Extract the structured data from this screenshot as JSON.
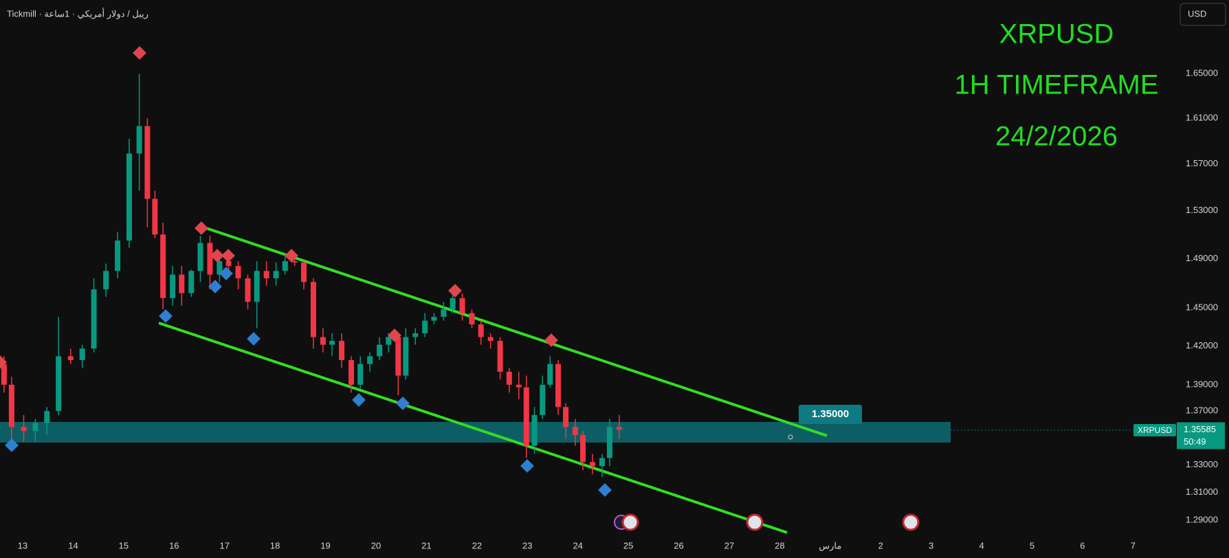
{
  "chart_data": {
    "type": "candlestick",
    "header": "Tickmill · ريبل / دولار أمريكي · 1ساعة",
    "title": "XRPUSD",
    "subtitle": "1H TIMEFRAME",
    "date_label": "24/2/2026",
    "currency_button": "USD",
    "symbol_tag": "XRPUSD",
    "last_price": {
      "value": 1.35585,
      "label": "1.35585"
    },
    "countdown": "50:49",
    "annotations": [
      "1.35000"
    ],
    "up_color": "#089981",
    "down_color": "#f23645",
    "log_scale": true,
    "grid": false,
    "xlim": [
      -0.45,
      22.84
    ],
    "ylim": [
      1.2783,
      1.7184
    ],
    "xticks": [
      {
        "value": 0,
        "label": "13"
      },
      {
        "value": 1,
        "label": "14"
      },
      {
        "value": 2,
        "label": "15"
      },
      {
        "value": 3,
        "label": "16"
      },
      {
        "value": 4,
        "label": "17"
      },
      {
        "value": 5,
        "label": "18"
      },
      {
        "value": 6,
        "label": "19"
      },
      {
        "value": 7,
        "label": "20"
      },
      {
        "value": 8,
        "label": "21"
      },
      {
        "value": 9,
        "label": "22"
      },
      {
        "value": 10,
        "label": "23"
      },
      {
        "value": 11,
        "label": "24"
      },
      {
        "value": 12,
        "label": "25"
      },
      {
        "value": 13,
        "label": "26"
      },
      {
        "value": 14,
        "label": "27"
      },
      {
        "value": 15,
        "label": "28"
      },
      {
        "value": 16,
        "label": "مارس"
      },
      {
        "value": 17,
        "label": "2"
      },
      {
        "value": 18,
        "label": "3"
      },
      {
        "value": 19,
        "label": "4"
      },
      {
        "value": 20,
        "label": "5"
      },
      {
        "value": 21,
        "label": "6"
      },
      {
        "value": 22,
        "label": "7"
      }
    ],
    "yticks": [
      {
        "value": 1.65,
        "label": "1.65000"
      },
      {
        "value": 1.61,
        "label": "1.61000"
      },
      {
        "value": 1.57,
        "label": "1.57000"
      },
      {
        "value": 1.53,
        "label": "1.53000"
      },
      {
        "value": 1.49,
        "label": "1.49000"
      },
      {
        "value": 1.45,
        "label": "1.45000"
      },
      {
        "value": 1.42,
        "label": "1.42000"
      },
      {
        "value": 1.39,
        "label": "1.39000"
      },
      {
        "value": 1.37,
        "label": "1.37000"
      },
      {
        "value": 1.33,
        "label": "1.33000"
      },
      {
        "value": 1.31,
        "label": "1.31000"
      },
      {
        "value": 1.29,
        "label": "1.29000"
      }
    ],
    "x": [
      -0.37,
      -0.22,
      0.02,
      0.25,
      0.48,
      0.71,
      0.95,
      1.18,
      1.41,
      1.65,
      1.88,
      2.11,
      2.31,
      2.47,
      2.62,
      2.78,
      2.97,
      3.15,
      3.34,
      3.52,
      3.71,
      3.9,
      4.08,
      4.27,
      4.46,
      4.64,
      4.83,
      5.02,
      5.2,
      5.39,
      5.57,
      5.76,
      5.95,
      6.13,
      6.32,
      6.51,
      6.69,
      6.88,
      7.07,
      7.25,
      7.44,
      7.59,
      7.78,
      7.97,
      8.15,
      8.34,
      8.52,
      8.71,
      8.9,
      9.08,
      9.27,
      9.46,
      9.64,
      9.83,
      9.98,
      10.14,
      10.3,
      10.45,
      10.61,
      10.76,
      10.95,
      11.1,
      11.29,
      11.48,
      11.63,
      11.82
    ],
    "open": [
      1.406,
      1.39,
      1.358,
      1.355,
      1.361,
      1.37,
      1.412,
      1.409,
      1.418,
      1.465,
      1.48,
      1.505,
      1.579,
      1.603,
      1.54,
      1.51,
      1.458,
      1.477,
      1.462,
      1.48,
      1.503,
      1.477,
      1.488,
      1.484,
      1.474,
      1.455,
      1.48,
      1.474,
      1.48,
      1.488,
      1.487,
      1.471,
      1.427,
      1.421,
      1.424,
      1.409,
      1.39,
      1.406,
      1.412,
      1.421,
      1.427,
      1.397,
      1.427,
      1.43,
      1.44,
      1.443,
      1.449,
      1.458,
      1.446,
      1.437,
      1.427,
      1.424,
      1.4,
      1.39,
      1.388,
      1.344,
      1.367,
      1.39,
      1.406,
      1.373,
      1.358,
      1.352,
      1.332,
      1.329,
      1.335,
      1.358
    ],
    "high": [
      1.412,
      1.396,
      1.367,
      1.364,
      1.373,
      1.443,
      1.418,
      1.421,
      1.474,
      1.486,
      1.512,
      1.592,
      1.65,
      1.61,
      1.547,
      1.52,
      1.484,
      1.484,
      1.481,
      1.509,
      1.509,
      1.494,
      1.494,
      1.488,
      1.477,
      1.488,
      1.488,
      1.487,
      1.494,
      1.494,
      1.488,
      1.474,
      1.434,
      1.43,
      1.43,
      1.412,
      1.412,
      1.415,
      1.427,
      1.43,
      1.43,
      1.434,
      1.434,
      1.446,
      1.446,
      1.455,
      1.462,
      1.462,
      1.449,
      1.44,
      1.43,
      1.427,
      1.403,
      1.4,
      1.397,
      1.373,
      1.397,
      1.412,
      1.409,
      1.376,
      1.364,
      1.355,
      1.338,
      1.338,
      1.364,
      1.367
    ],
    "low": [
      1.384,
      1.343,
      1.347,
      1.347,
      1.352,
      1.367,
      1.406,
      1.403,
      1.415,
      1.459,
      1.474,
      1.499,
      1.547,
      1.516,
      1.507,
      1.449,
      1.452,
      1.452,
      1.459,
      1.471,
      1.465,
      1.471,
      1.477,
      1.465,
      1.449,
      1.434,
      1.468,
      1.468,
      1.477,
      1.484,
      1.465,
      1.418,
      1.415,
      1.412,
      1.403,
      1.384,
      1.387,
      1.4,
      1.409,
      1.415,
      1.382,
      1.394,
      1.421,
      1.427,
      1.437,
      1.44,
      1.446,
      1.44,
      1.434,
      1.421,
      1.418,
      1.394,
      1.384,
      1.379,
      1.335,
      1.338,
      1.364,
      1.388,
      1.367,
      1.349,
      1.344,
      1.326,
      1.323,
      1.321,
      1.329,
      1.349
    ],
    "close": [
      1.39,
      1.358,
      1.355,
      1.361,
      1.37,
      1.412,
      1.409,
      1.418,
      1.465,
      1.48,
      1.505,
      1.579,
      1.603,
      1.54,
      1.51,
      1.458,
      1.477,
      1.462,
      1.48,
      1.503,
      1.477,
      1.488,
      1.484,
      1.474,
      1.455,
      1.48,
      1.474,
      1.48,
      1.488,
      1.487,
      1.471,
      1.427,
      1.421,
      1.424,
      1.409,
      1.39,
      1.406,
      1.412,
      1.421,
      1.427,
      1.397,
      1.427,
      1.43,
      1.44,
      1.443,
      1.449,
      1.458,
      1.446,
      1.437,
      1.427,
      1.424,
      1.4,
      1.39,
      1.388,
      1.344,
      1.367,
      1.39,
      1.406,
      1.373,
      1.358,
      1.352,
      1.332,
      1.329,
      1.335,
      1.358,
      1.356
    ]
  }
}
